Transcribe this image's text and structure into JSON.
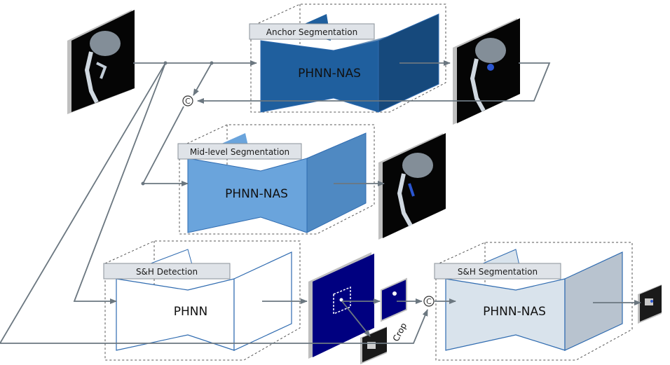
{
  "stages": {
    "anchor": {
      "title": "Anchor Segmentation",
      "network": "PHNN-NAS"
    },
    "mid": {
      "title": "Mid-level Segmentation",
      "network": "PHNN-NAS"
    },
    "detection": {
      "title": "S&H Detection",
      "network": "PHNN"
    },
    "sh_seg": {
      "title": "S&H Segmentation",
      "network": "PHNN-NAS"
    }
  },
  "labels": {
    "crop": "Crop",
    "concat": "C"
  },
  "colors": {
    "anchor_front": "#1f5f9e",
    "anchor_dark": "#16497c",
    "mid_front": "#6aa4dc",
    "mid_dark": "#4f89c2",
    "detection_front": "#ffffff",
    "sh_front": "#d9e3ec",
    "sh_dark": "#b8c3cf",
    "net_edge": "#2f6bb0",
    "flow_line": "#6b7780",
    "detection_map": "#000080"
  },
  "icons": [
    "xray-input-icon",
    "xray-anchor-output-icon",
    "xray-mid-output-icon",
    "detection-map-icon",
    "cropped-patch-icon",
    "final-output-icon",
    "concat-icon"
  ]
}
